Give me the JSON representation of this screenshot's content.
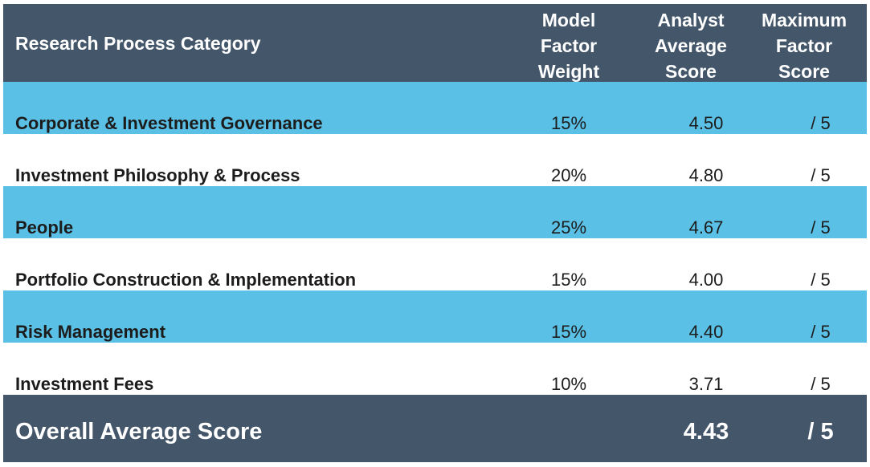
{
  "header": {
    "category": "Research Process Category",
    "col_weight_lines": [
      "Model",
      "Factor",
      "Weight"
    ],
    "col_score_lines": [
      "Analyst",
      "Average",
      "Score"
    ],
    "col_max_lines": [
      "Maximum",
      "Factor",
      "Score"
    ]
  },
  "rows": [
    {
      "category": "Corporate & Investment Governance",
      "weight": "15%",
      "score": "4.50",
      "max": "/ 5"
    },
    {
      "category": "Investment Philosophy & Process",
      "weight": "20%",
      "score": "4.80",
      "max": "/ 5"
    },
    {
      "category": "People",
      "weight": "25%",
      "score": "4.67",
      "max": "/ 5"
    },
    {
      "category": "Portfolio Construction & Implementation",
      "weight": "15%",
      "score": "4.00",
      "max": "/ 5"
    },
    {
      "category": "Risk Management",
      "weight": "15%",
      "score": "4.40",
      "max": "/ 5"
    },
    {
      "category": "Investment Fees",
      "weight": "10%",
      "score": "3.71",
      "max": "/ 5"
    }
  ],
  "footer": {
    "label": "Overall Average Score",
    "score": "4.43",
    "max": "/ 5"
  },
  "colors": {
    "header_bg": "#44566a",
    "row_blue": "#5bc0e6",
    "row_white": "#ffffff",
    "text_dark": "#1c1c1c",
    "text_light": "#ffffff"
  }
}
